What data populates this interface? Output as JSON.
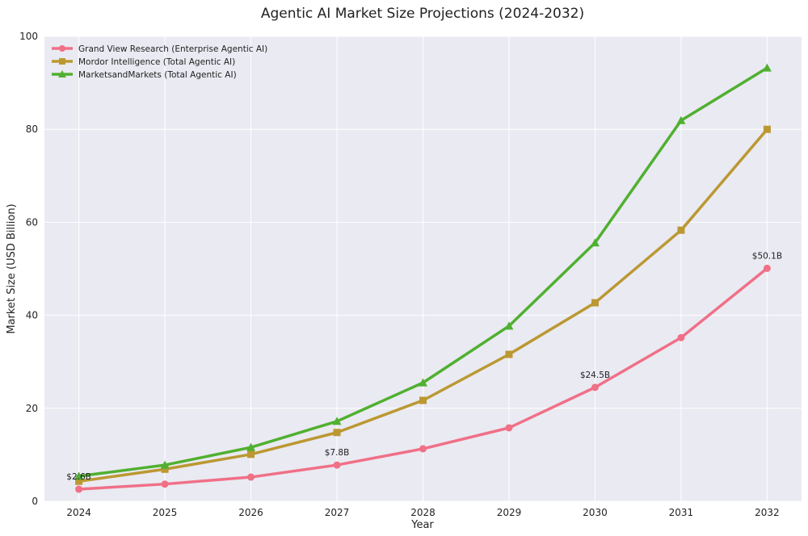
{
  "chart_data": {
    "type": "line",
    "title": "Agentic AI Market Size Projections (2024-2032)",
    "xlabel": "Year",
    "ylabel": "Market Size (USD Billion)",
    "x": [
      2024,
      2025,
      2026,
      2027,
      2028,
      2029,
      2030,
      2031,
      2032
    ],
    "xlim": [
      2023.6,
      2032.4
    ],
    "ylim": [
      0,
      100
    ],
    "yticks": [
      0,
      20,
      40,
      60,
      80,
      100
    ],
    "grid": true,
    "legend_position": "top-left",
    "series": [
      {
        "name": "Grand View Research (Enterprise Agentic AI)",
        "color": "#f07087",
        "marker": "circle",
        "values": [
          2.6,
          3.7,
          5.2,
          7.8,
          11.3,
          15.8,
          24.5,
          35.2,
          50.1
        ]
      },
      {
        "name": "Mordor Intelligence (Total Agentic AI)",
        "color": "#bb9832",
        "marker": "square",
        "values": [
          4.3,
          6.9,
          10.1,
          14.8,
          21.7,
          31.6,
          42.7,
          58.3,
          80.0
        ]
      },
      {
        "name": "MarketsandMarkets (Total Agentic AI)",
        "color": "#50b030",
        "marker": "triangle",
        "values": [
          5.4,
          7.8,
          11.6,
          17.2,
          25.5,
          37.7,
          55.6,
          81.9,
          93.2
        ]
      }
    ],
    "annotations": [
      {
        "x": 2024,
        "y": 2.6,
        "text": "$2.6B"
      },
      {
        "x": 2027,
        "y": 7.8,
        "text": "$7.8B"
      },
      {
        "x": 2030,
        "y": 24.5,
        "text": "$24.5B"
      },
      {
        "x": 2032,
        "y": 50.1,
        "text": "$50.1B"
      }
    ]
  }
}
